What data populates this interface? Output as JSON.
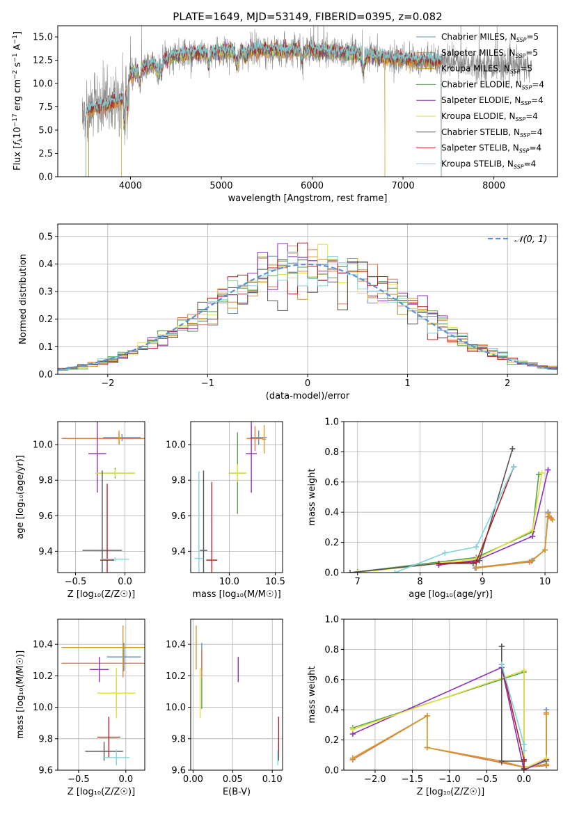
{
  "colors": {
    "Chabrier MILES": "#6a8fb0",
    "Salpeter MILES": "#e07a4a",
    "Kroupa MILES": "#d49a2a",
    "Chabrier ELODIE": "#59a14f",
    "Salpeter ELODIE": "#8e30b8",
    "Kroupa ELODIE": "#e3e040",
    "Chabrier STELIB": "#555555",
    "Salpeter STELIB": "#b22222",
    "Kroupa STELIB": "#7fd4dc",
    "gauss": "#5b8fd6",
    "grid": "#b0b0b0",
    "spec_gray": "#8a8a8a"
  },
  "chart_data": [
    {
      "id": "spectrum",
      "type": "line",
      "title": "PLATE=1649, MJD=53149, FIBERID=0395, z=0.082",
      "xlabel": "wavelength [Angstrom, rest frame]",
      "ylabel_parts": [
        "Flux [",
        "f",
        "λ",
        "10",
        "−17",
        " erg cm",
        "−2",
        " s",
        "−1",
        " A",
        "−1",
        "]"
      ],
      "xlim": [
        3200,
        8700
      ],
      "ylim": [
        0,
        16.2
      ],
      "xticks": [
        4000,
        5000,
        6000,
        7000,
        8000
      ],
      "yticks": [
        0.0,
        2.5,
        5.0,
        7.5,
        10.0,
        12.5,
        15.0
      ],
      "grid": false,
      "legend_position": "top-right",
      "legend": [
        {
          "name": "Chabrier MILES",
          "nssp": "5"
        },
        {
          "name": "Salpeter MILES",
          "nssp": "5"
        },
        {
          "name": "Kroupa MILES",
          "nssp": "5"
        },
        {
          "name": "Chabrier ELODIE",
          "nssp": "4"
        },
        {
          "name": "Salpeter ELODIE",
          "nssp": "4"
        },
        {
          "name": "Kroupa ELODIE",
          "nssp": "4"
        },
        {
          "name": "Chabrier STELIB",
          "nssp": "4"
        },
        {
          "name": "Salpeter STELIB",
          "nssp": "4"
        },
        {
          "name": "Kroupa STELIB",
          "nssp": "4"
        }
      ],
      "legend_nssp_label": "N",
      "legend_nssp_sub": "SSP",
      "continuum": [
        [
          3500,
          7.0
        ],
        [
          3700,
          7.6
        ],
        [
          3900,
          8.2
        ],
        [
          4000,
          11.0
        ],
        [
          4200,
          12.0
        ],
        [
          4500,
          13.0
        ],
        [
          5000,
          13.5
        ],
        [
          5500,
          13.6
        ],
        [
          6000,
          13.6
        ],
        [
          6500,
          13.1
        ],
        [
          7000,
          12.6
        ],
        [
          7500,
          12.3
        ],
        [
          7900,
          12.0
        ],
        [
          8400,
          11.8
        ]
      ],
      "data_range": [
        3470,
        8420
      ],
      "model_range": [
        3510,
        7420
      ],
      "model_ranges": {
        "Chabrier MILES": [
          3540,
          7420
        ],
        "Salpeter MILES": [
          3540,
          7420
        ],
        "Kroupa MILES": [
          3540,
          7420
        ],
        "Chabrier ELODIE": [
          3900,
          6800
        ],
        "Salpeter ELODIE": [
          3900,
          6800
        ],
        "Kroupa ELODIE": [
          3900,
          6800
        ],
        "Chabrier STELIB": [
          3510,
          7420
        ],
        "Salpeter STELIB": [
          3510,
          7420
        ],
        "Kroupa STELIB": [
          3510,
          7420
        ]
      }
    },
    {
      "id": "residuals",
      "type": "histogram",
      "xlabel": "(data-model)/error",
      "ylabel": "Normed distribution",
      "xlim": [
        -2.5,
        2.5
      ],
      "ylim": [
        0,
        0.545
      ],
      "xticks": [
        -2,
        -1,
        0,
        1,
        2
      ],
      "yticks": [
        0.0,
        0.1,
        0.2,
        0.3,
        0.4,
        0.5
      ],
      "grid": true,
      "legend_position": "top-right",
      "gaussian_label": "𝒩(0, 1)",
      "bin_width": 0.1
    },
    {
      "id": "age-vs-Z",
      "type": "errorbar",
      "xlabel": "Z [log₁₀(Z/Z☉)]",
      "ylabel": "age  [log₁₀(age/yr)]",
      "xlim": [
        -0.68,
        0.2
      ],
      "ylim": [
        9.28,
        10.13
      ],
      "xticks": [
        -0.5,
        0.0
      ],
      "yticks": [
        9.4,
        9.6,
        9.8,
        10.0
      ],
      "grid": true,
      "points": [
        {
          "s": "Chabrier MILES",
          "x": -0.03,
          "y": 10.04,
          "xerr": 0.19,
          "yerr": 0.02
        },
        {
          "s": "Salpeter MILES",
          "x": -0.06,
          "y": 10.035,
          "xerr": 0.58,
          "yerr": 0.03
        },
        {
          "s": "Kroupa MILES",
          "x": -0.06,
          "y": 10.04,
          "xerr": 0.03,
          "yerr": 0.04
        },
        {
          "s": "Chabrier ELODIE",
          "x": -0.1,
          "y": 9.84,
          "xerr": 0.2,
          "yerr": 0.03
        },
        {
          "s": "Salpeter ELODIE",
          "x": -0.28,
          "y": 9.95,
          "xerr": 0.09,
          "yerr": 0.22
        },
        {
          "s": "Kroupa ELODIE",
          "x": -0.1,
          "y": 9.84,
          "xerr": 0.2,
          "yerr": 0.02
        },
        {
          "s": "Chabrier STELIB",
          "x": -0.23,
          "y": 9.405,
          "xerr": 0.2,
          "yerr": 0.45
        },
        {
          "s": "Salpeter STELIB",
          "x": -0.18,
          "y": 9.35,
          "xerr": 0.07,
          "yerr": 0.43
        },
        {
          "s": "Kroupa STELIB",
          "x": -0.1,
          "y": 9.355,
          "xerr": 0.14,
          "yerr": 0.01
        }
      ]
    },
    {
      "id": "age-vs-mass",
      "type": "errorbar",
      "xlabel": "mass [log₁₀(M/M☉)]",
      "ylabel": "",
      "xlim": [
        9.58,
        10.58
      ],
      "ylim": [
        9.28,
        10.13
      ],
      "xticks": [
        9.5,
        10.0,
        10.5
      ],
      "yticks": [
        9.4,
        9.6,
        9.8,
        10.0
      ],
      "grid": true,
      "points": [
        {
          "s": "Chabrier MILES",
          "x": 10.32,
          "y": 10.04,
          "xerr": 0.09,
          "yerr": 0.04
        },
        {
          "s": "Salpeter MILES",
          "x": 10.28,
          "y": 10.035,
          "xerr": 0.09,
          "yerr": 0.07
        },
        {
          "s": "Kroupa MILES",
          "x": 10.38,
          "y": 10.03,
          "xerr": 0.02,
          "yerr": 0.08
        },
        {
          "s": "Chabrier ELODIE",
          "x": 10.09,
          "y": 9.84,
          "xerr": 0.09,
          "yerr": 0.23
        },
        {
          "s": "Salpeter ELODIE",
          "x": 10.24,
          "y": 9.95,
          "xerr": 0.06,
          "yerr": 0.22
        },
        {
          "s": "Kroupa ELODIE",
          "x": 10.09,
          "y": 9.84,
          "xerr": 0.1,
          "yerr": 0.05
        },
        {
          "s": "Chabrier STELIB",
          "x": 9.72,
          "y": 9.405,
          "xerr": 0.04,
          "yerr": 0.45
        },
        {
          "s": "Salpeter STELIB",
          "x": 9.81,
          "y": 9.35,
          "xerr": 0.06,
          "yerr": 0.44
        },
        {
          "s": "Kroupa STELIB",
          "x": 9.67,
          "y": 9.36,
          "xerr": 0.05,
          "yerr": 0.49
        }
      ]
    },
    {
      "id": "mass-weight-vs-age",
      "type": "line",
      "xlabel": "age  [log₁₀(age/yr)]",
      "ylabel": "mass weight",
      "xlim": [
        6.78,
        10.2
      ],
      "ylim": [
        0,
        1.0
      ],
      "xticks": [
        7,
        8,
        9,
        10
      ],
      "yticks": [
        0.0,
        0.2,
        0.4,
        0.6,
        0.8,
        1.0
      ],
      "grid": true,
      "series": [
        {
          "s": "Chabrier MILES",
          "points": [
            [
              8.88,
              0.03
            ],
            [
              9.8,
              0.08
            ],
            [
              10.0,
              0.15
            ],
            [
              10.05,
              0.4
            ],
            [
              10.1,
              0.36
            ]
          ]
        },
        {
          "s": "Salpeter MILES",
          "points": [
            [
              8.9,
              0.03
            ],
            [
              9.75,
              0.07
            ],
            [
              10.0,
              0.15
            ],
            [
              10.05,
              0.37
            ],
            [
              10.1,
              0.36
            ]
          ]
        },
        {
          "s": "Kroupa MILES",
          "points": [
            [
              8.9,
              0.035
            ],
            [
              9.78,
              0.075
            ],
            [
              10.0,
              0.15
            ],
            [
              10.05,
              0.39
            ],
            [
              10.12,
              0.35
            ]
          ]
        },
        {
          "s": "Chabrier ELODIE",
          "points": [
            [
              7.0,
              0.005
            ],
            [
              8.9,
              0.1
            ],
            [
              9.8,
              0.27
            ],
            [
              9.9,
              0.65
            ]
          ]
        },
        {
          "s": "Salpeter ELODIE",
          "points": [
            [
              8.3,
              0.05
            ],
            [
              8.9,
              0.08
            ],
            [
              9.8,
              0.24
            ],
            [
              10.05,
              0.68
            ]
          ]
        },
        {
          "s": "Kroupa ELODIE",
          "points": [
            [
              7.0,
              0.0
            ],
            [
              8.9,
              0.09
            ],
            [
              9.8,
              0.28
            ],
            [
              9.95,
              0.66
            ]
          ]
        },
        {
          "s": "Chabrier STELIB",
          "points": [
            [
              6.88,
              0.0
            ],
            [
              8.3,
              0.06
            ],
            [
              8.85,
              0.06
            ],
            [
              8.95,
              0.08
            ],
            [
              9.48,
              0.82
            ]
          ]
        },
        {
          "s": "Salpeter STELIB",
          "points": [
            [
              8.3,
              0.06
            ],
            [
              8.9,
              0.07
            ],
            [
              9.5,
              0.7
            ]
          ]
        },
        {
          "s": "Kroupa STELIB",
          "points": [
            [
              7.6,
              0.0
            ],
            [
              8.4,
              0.13
            ],
            [
              8.9,
              0.17
            ],
            [
              9.5,
              0.7
            ]
          ]
        }
      ]
    },
    {
      "id": "mass-vs-Z",
      "type": "errorbar",
      "xlabel": "Z [log₁₀(Z/Z☉)]",
      "ylabel": "mass [log₁₀(M/M☉)]",
      "xlim": [
        -0.72,
        0.2
      ],
      "ylim": [
        9.6,
        10.56
      ],
      "xticks": [
        -0.5,
        0.0
      ],
      "yticks": [
        9.6,
        9.8,
        10.0,
        10.2,
        10.4
      ],
      "grid": true,
      "points": [
        {
          "s": "Chabrier MILES",
          "x": -0.02,
          "y": 10.32,
          "xerr": 0.18,
          "yerr": 0.09
        },
        {
          "s": "Salpeter MILES",
          "x": -0.03,
          "y": 10.28,
          "xerr": 0.65,
          "yerr": 0.09
        },
        {
          "s": "Kroupa MILES",
          "x": -0.03,
          "y": 10.38,
          "xerr": 0.65,
          "yerr": 0.14
        },
        {
          "s": "Chabrier ELODIE",
          "x": -0.1,
          "y": 10.09,
          "xerr": 0.2,
          "yerr": 0.1
        },
        {
          "s": "Salpeter ELODIE",
          "x": -0.28,
          "y": 10.24,
          "xerr": 0.1,
          "yerr": 0.08
        },
        {
          "s": "Kroupa ELODIE",
          "x": -0.1,
          "y": 10.09,
          "xerr": 0.2,
          "yerr": 0.16
        },
        {
          "s": "Chabrier STELIB",
          "x": -0.23,
          "y": 9.72,
          "xerr": 0.2,
          "yerr": 0.06
        },
        {
          "s": "Salpeter STELIB",
          "x": -0.18,
          "y": 9.81,
          "xerr": 0.12,
          "yerr": 0.13
        },
        {
          "s": "Kroupa STELIB",
          "x": -0.1,
          "y": 9.68,
          "xerr": 0.14,
          "yerr": 0.05
        }
      ]
    },
    {
      "id": "mass-vs-EBV",
      "type": "errorbar",
      "xlabel": "E(B-V)",
      "ylabel": "",
      "xlim": [
        -0.003,
        0.113
      ],
      "ylim": [
        9.6,
        10.56
      ],
      "xticks": [
        0.0,
        0.05,
        0.1
      ],
      "yticks": [
        9.6,
        9.8,
        10.0,
        10.2,
        10.4
      ],
      "grid": true,
      "points": [
        {
          "s": "Chabrier MILES",
          "x": 0.011,
          "y": 10.32,
          "xerr": 0,
          "yerr": 0.09
        },
        {
          "s": "Salpeter MILES",
          "x": 0.011,
          "y": 10.28,
          "xerr": 0,
          "yerr": 0.09
        },
        {
          "s": "Kroupa MILES",
          "x": 0.004,
          "y": 10.38,
          "xerr": 0,
          "yerr": 0.14
        },
        {
          "s": "Chabrier ELODIE",
          "x": 0.011,
          "y": 10.09,
          "xerr": 0,
          "yerr": 0.1
        },
        {
          "s": "Salpeter ELODIE",
          "x": 0.057,
          "y": 10.24,
          "xerr": 0,
          "yerr": 0.08
        },
        {
          "s": "Kroupa ELODIE",
          "x": 0.009,
          "y": 10.09,
          "xerr": 0,
          "yerr": 0.16
        },
        {
          "s": "Chabrier STELIB",
          "x": 0.108,
          "y": 9.72,
          "xerr": 0,
          "yerr": 0.06
        },
        {
          "s": "Salpeter STELIB",
          "x": 0.108,
          "y": 9.81,
          "xerr": 0,
          "yerr": 0.13
        },
        {
          "s": "Kroupa STELIB",
          "x": 0.107,
          "y": 9.68,
          "xerr": 0,
          "yerr": 0.05
        }
      ]
    },
    {
      "id": "mass-weight-vs-Z",
      "type": "line",
      "xlabel": "Z [log₁₀(Z/Z☉)]",
      "ylabel": "mass weight",
      "xlim": [
        -2.42,
        0.45
      ],
      "ylim": [
        0,
        1.0
      ],
      "xticks": [
        -2.0,
        -1.5,
        -1.0,
        -0.5,
        0.0
      ],
      "yticks": [
        0.0,
        0.2,
        0.4,
        0.6,
        0.8,
        1.0
      ],
      "grid": true,
      "series": [
        {
          "s": "Chabrier MILES",
          "points": [
            [
              -2.3,
              0.07
            ],
            [
              -1.3,
              0.36
            ],
            [
              -1.3,
              0.15
            ],
            [
              -0.3,
              0.05
            ],
            [
              0.0,
              0.02
            ],
            [
              0.3,
              0.03
            ],
            [
              0.3,
              0.4
            ]
          ]
        },
        {
          "s": "Salpeter MILES",
          "points": [
            [
              -2.3,
              0.07
            ],
            [
              -1.3,
              0.36
            ],
            [
              -1.3,
              0.15
            ],
            [
              -0.3,
              0.05
            ],
            [
              0.0,
              0.02
            ],
            [
              0.3,
              0.03
            ],
            [
              0.3,
              0.38
            ]
          ]
        },
        {
          "s": "Kroupa MILES",
          "points": [
            [
              -2.3,
              0.08
            ],
            [
              -1.3,
              0.36
            ],
            [
              -1.3,
              0.15
            ],
            [
              -0.3,
              0.06
            ],
            [
              0.0,
              0.02
            ],
            [
              0.3,
              0.04
            ],
            [
              0.3,
              0.37
            ]
          ]
        },
        {
          "s": "Chabrier ELODIE",
          "points": [
            [
              -2.3,
              0.28
            ],
            [
              0.0,
              0.65
            ],
            [
              0.0,
              0.01
            ],
            [
              0.3,
              0.06
            ]
          ]
        },
        {
          "s": "Salpeter ELODIE",
          "points": [
            [
              -2.3,
              0.24
            ],
            [
              -0.3,
              0.68
            ],
            [
              0.0,
              0.0
            ],
            [
              0.3,
              0.07
            ]
          ]
        },
        {
          "s": "Kroupa ELODIE",
          "points": [
            [
              -2.3,
              0.27
            ],
            [
              0.0,
              0.66
            ],
            [
              0.0,
              0.01
            ],
            [
              0.3,
              0.08
            ]
          ]
        },
        {
          "s": "Chabrier STELIB",
          "points": [
            [
              -0.3,
              0.82
            ],
            [
              -0.3,
              0.06
            ],
            [
              0.0,
              0.06
            ],
            [
              0.0,
              0.01
            ]
          ]
        },
        {
          "s": "Salpeter STELIB",
          "points": [
            [
              -0.3,
              0.7
            ],
            [
              0.0,
              0.07
            ],
            [
              0.0,
              0.0
            ]
          ]
        },
        {
          "s": "Kroupa STELIB",
          "points": [
            [
              -0.3,
              0.7
            ],
            [
              0.0,
              0.17
            ],
            [
              0.0,
              0.13
            ]
          ]
        }
      ]
    }
  ]
}
